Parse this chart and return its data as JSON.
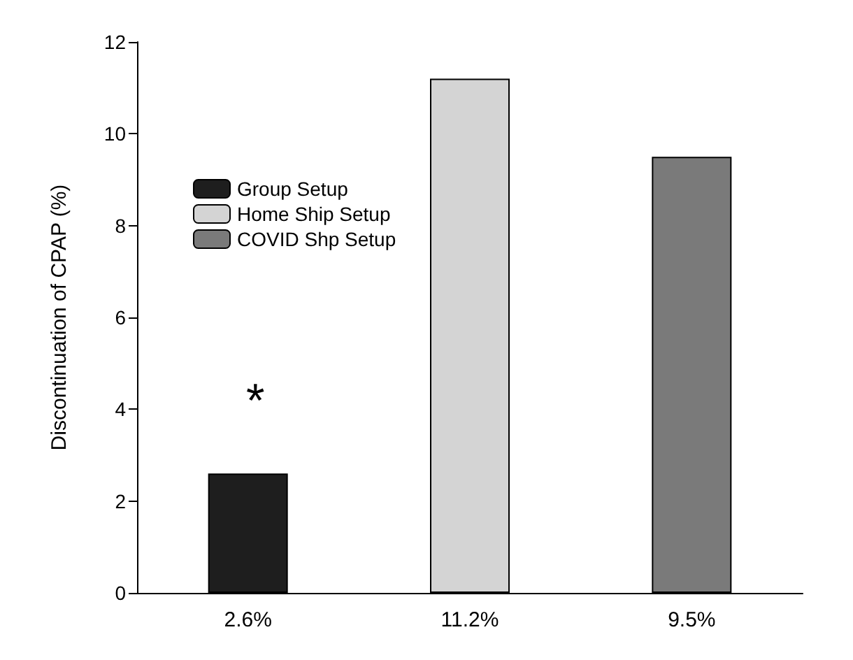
{
  "chart_data": {
    "type": "bar",
    "ylabel": "Discontinuation of CPAP (%)",
    "categories": [
      "2.6%",
      "11.2%",
      "9.5%"
    ],
    "series": [
      {
        "name": "Group Setup",
        "color": "#1e1e1e",
        "values": [
          2.6,
          null,
          null
        ]
      },
      {
        "name": "Home Ship Setup",
        "color": "#d4d4d4",
        "values": [
          null,
          11.2,
          null
        ]
      },
      {
        "name": "COVID Shp Setup",
        "color": "#7a7a7a",
        "values": [
          null,
          null,
          9.5
        ]
      }
    ],
    "ylim": [
      0,
      12
    ],
    "yticks": [
      0,
      2,
      4,
      6,
      8,
      10,
      12
    ],
    "grid": false,
    "legend": "top left",
    "annotations": [
      "*"
    ]
  }
}
